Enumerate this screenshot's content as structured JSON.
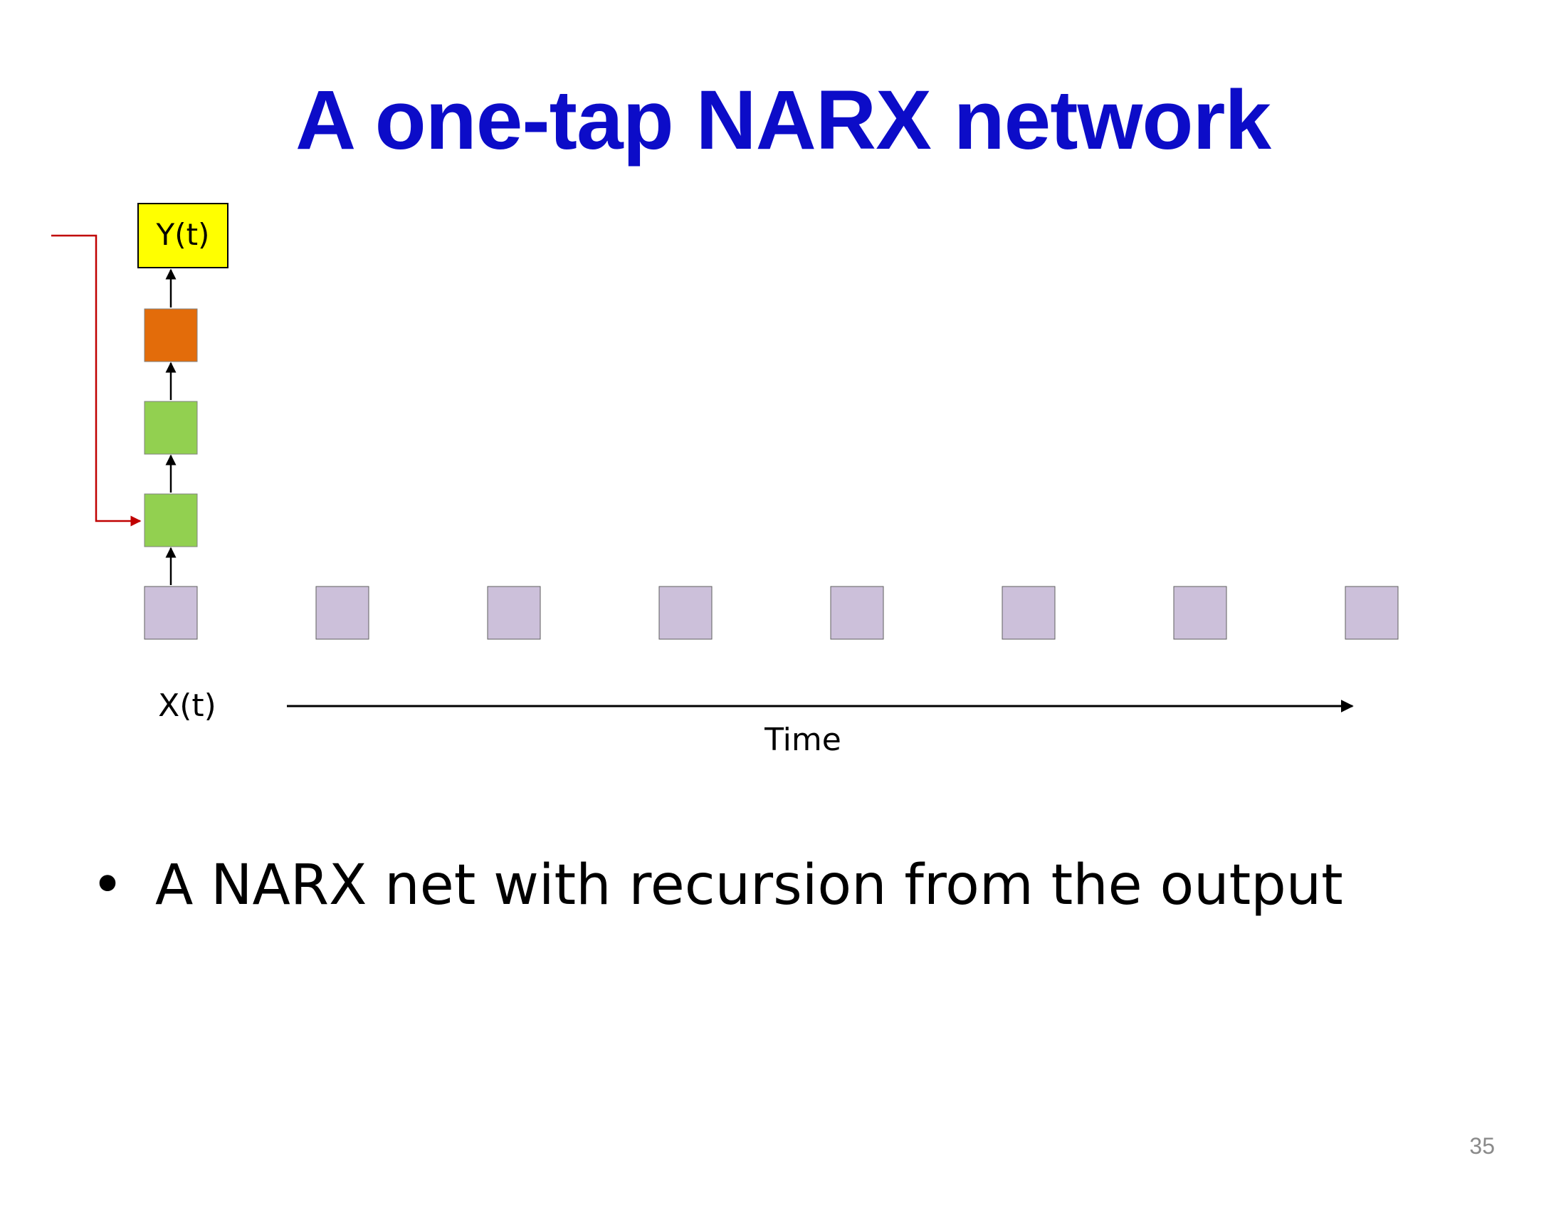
{
  "title": "A one-tap NARX network",
  "diagram": {
    "output_label": "Y(t)",
    "input_label": "X(t)",
    "time_label": "Time",
    "input_box_count": 8,
    "colors": {
      "output_box": "#ffff00",
      "output_layer": "#e36c0a",
      "hidden_layer": "#92d050",
      "input_box": "#ccc0da",
      "recurrent_arrow": "#c00000",
      "arrow": "#000000"
    }
  },
  "bullets": [
    {
      "marker": "•",
      "text": "A NARX net with recursion from the output"
    }
  ],
  "page_number": "35"
}
